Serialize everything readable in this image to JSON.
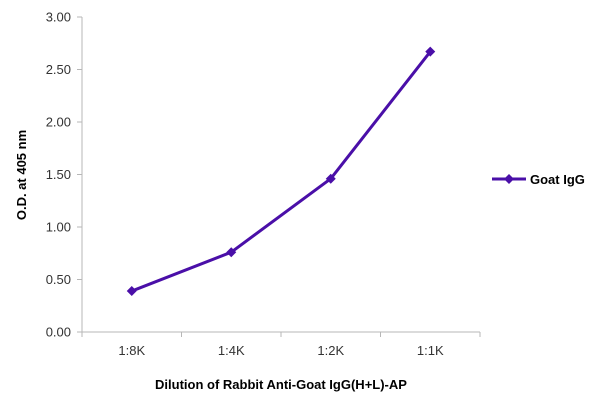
{
  "chart_data": {
    "type": "line",
    "categories": [
      "1:8K",
      "1:4K",
      "1:2K",
      "1:1K"
    ],
    "series": [
      {
        "name": "Goat IgG",
        "values": [
          0.39,
          0.76,
          1.46,
          2.67
        ],
        "color": "#4a0fa8"
      }
    ],
    "xlabel": "Dilution of Rabbit Anti-Goat IgG(H+L)-AP",
    "ylabel": "O.D. at 405 nm",
    "ylim": [
      0,
      3
    ],
    "yticks": [
      "0.00",
      "0.50",
      "1.00",
      "1.50",
      "2.00",
      "2.50",
      "3.00"
    ],
    "grid": false,
    "legend_position": "right"
  }
}
